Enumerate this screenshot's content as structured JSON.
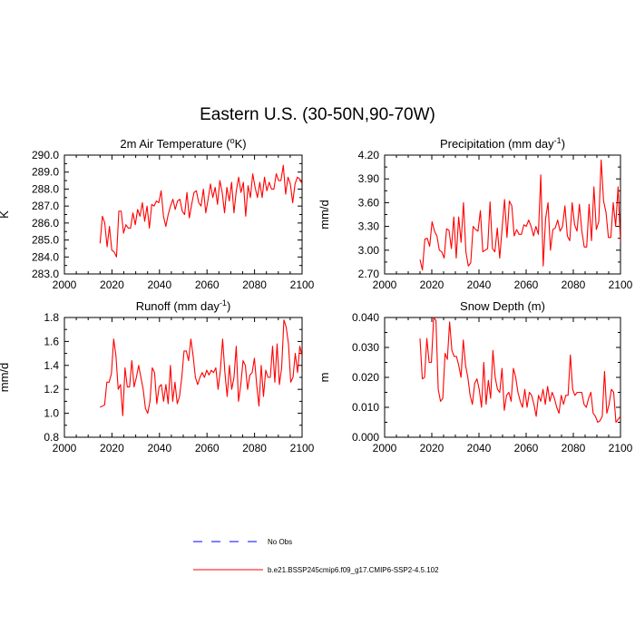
{
  "page_title": "Eastern U.S. (30-50N,90-70W)",
  "legend": {
    "obs_label": "No Obs",
    "model_label": "b.e21.BSSP245cmip6.f09_g17.CMIP6-SSP2-4.5.102",
    "obs_color": "#0000ff",
    "model_color": "#ff0000"
  },
  "chart_data": [
    {
      "type": "line",
      "id": "tas",
      "title": "2m Air Temperature (",
      "title_sup": "o",
      "title_end": "K)",
      "xlabel": "",
      "ylabel": "K",
      "xlim": [
        2000,
        2100
      ],
      "ylim": [
        283.0,
        290.0
      ],
      "xticks": [
        2000,
        2020,
        2040,
        2060,
        2080,
        2100
      ],
      "xtick_labels": [
        "2000",
        "2020",
        "2040",
        "2060",
        "2080",
        "2100"
      ],
      "yticks": [
        283.0,
        284.0,
        285.0,
        286.0,
        287.0,
        288.0,
        289.0,
        290.0
      ],
      "ytick_labels": [
        "283.0",
        "284.0",
        "285.0",
        "286.0",
        "287.0",
        "288.0",
        "289.0",
        "290.0"
      ],
      "series": [
        {
          "name": "b.e21.BSSP245cmip6.f09_g17.CMIP6-SSP2-4.5.102",
          "color": "#ff0000",
          "x_start": 2015,
          "values": [
            284.8,
            286.4,
            286.0,
            284.6,
            285.8,
            284.4,
            284.3,
            284.0,
            286.7,
            286.7,
            285.4,
            285.9,
            285.7,
            285.7,
            286.6,
            285.9,
            286.8,
            286.4,
            287.2,
            286.1,
            287.0,
            285.7,
            287.1,
            287.0,
            287.3,
            287.2,
            287.9,
            286.4,
            285.8,
            286.5,
            287.0,
            287.4,
            286.8,
            287.3,
            287.4,
            286.7,
            286.5,
            287.8,
            286.3,
            287.1,
            287.8,
            287.9,
            287.2,
            287.0,
            288.0,
            286.6,
            287.4,
            288.3,
            287.5,
            288.1,
            287.1,
            288.5,
            287.8,
            286.6,
            288.1,
            287.3,
            288.4,
            286.6,
            287.9,
            288.7,
            287.8,
            288.4,
            286.4,
            288.2,
            287.5,
            288.9,
            288.1,
            287.5,
            288.4,
            287.5,
            288.7,
            287.9,
            288.4,
            288.0,
            288.0,
            288.9,
            288.5,
            288.5,
            289.4,
            287.7,
            288.7,
            288.3,
            287.2,
            288.3,
            288.7,
            288.6,
            288.3
          ]
        }
      ]
    },
    {
      "type": "line",
      "id": "pr",
      "title": "Precipitation (mm day",
      "title_sup": "-1",
      "title_end": ")",
      "xlabel": "",
      "ylabel": "mm/d",
      "xlim": [
        2000,
        2100
      ],
      "ylim": [
        2.7,
        4.2
      ],
      "xticks": [
        2000,
        2020,
        2040,
        2060,
        2080,
        2100
      ],
      "xtick_labels": [
        "2000",
        "2020",
        "2040",
        "2060",
        "2080",
        "2100"
      ],
      "yticks": [
        2.7,
        3.0,
        3.3,
        3.6,
        3.9,
        4.2
      ],
      "ytick_labels": [
        "2.70",
        "3.00",
        "3.30",
        "3.60",
        "3.90",
        "4.20"
      ],
      "series": [
        {
          "name": "b.e21.BSSP245cmip6.f09_g17.CMIP6-SSP2-4.5.102",
          "color": "#ff0000",
          "x_start": 2015,
          "values": [
            2.88,
            2.75,
            3.14,
            3.15,
            3.05,
            3.36,
            3.24,
            3.18,
            3.0,
            2.98,
            2.9,
            3.27,
            3.25,
            3.02,
            3.42,
            2.9,
            3.42,
            3.1,
            3.6,
            2.98,
            2.8,
            2.84,
            3.3,
            3.26,
            3.24,
            3.5,
            2.98,
            3.0,
            3.02,
            3.61,
            3.02,
            2.98,
            3.28,
            2.9,
            3.28,
            3.64,
            3.16,
            3.62,
            3.56,
            3.18,
            3.26,
            3.2,
            3.2,
            3.32,
            3.3,
            3.38,
            3.3,
            3.18,
            3.3,
            3.2,
            3.95,
            2.8,
            3.4,
            3.6,
            3.0,
            3.26,
            3.28,
            3.38,
            3.24,
            3.3,
            3.56,
            3.18,
            3.12,
            3.6,
            3.32,
            3.24,
            3.58,
            3.24,
            3.04,
            3.04,
            3.58,
            3.12,
            3.8,
            3.26,
            3.36,
            4.14,
            3.62,
            3.48,
            3.16,
            3.16,
            3.6,
            3.3,
            3.8,
            3.1
          ]
        }
      ]
    },
    {
      "type": "line",
      "id": "runoff",
      "title": "Runoff (mm day",
      "title_sup": "-1",
      "title_end": ")",
      "xlabel": "",
      "ylabel": "mm/d",
      "xlim": [
        2000,
        2100
      ],
      "ylim": [
        0.8,
        1.8
      ],
      "xticks": [
        2000,
        2020,
        2040,
        2060,
        2080,
        2100
      ],
      "xtick_labels": [
        "2000",
        "2020",
        "2040",
        "2060",
        "2080",
        "2100"
      ],
      "yticks": [
        0.8,
        1.0,
        1.2,
        1.4,
        1.6,
        1.8
      ],
      "ytick_labels": [
        "0.8",
        "1.0",
        "1.2",
        "1.4",
        "1.6",
        "1.8"
      ],
      "series": [
        {
          "name": "b.e21.BSSP245cmip6.f09_g17.CMIP6-SSP2-4.5.102",
          "color": "#ff0000",
          "x_start": 2015,
          "values": [
            1.05,
            1.06,
            1.07,
            1.26,
            1.26,
            1.33,
            1.62,
            1.48,
            1.2,
            1.24,
            0.98,
            1.38,
            1.22,
            1.22,
            1.44,
            1.22,
            1.3,
            1.4,
            1.3,
            1.2,
            1.04,
            1.0,
            1.1,
            1.38,
            1.34,
            1.08,
            1.22,
            1.24,
            1.1,
            1.24,
            1.08,
            1.4,
            1.1,
            1.26,
            1.08,
            1.14,
            1.3,
            1.52,
            1.52,
            1.44,
            1.62,
            1.48,
            1.3,
            1.24,
            1.3,
            1.34,
            1.3,
            1.36,
            1.32,
            1.36,
            1.34,
            1.38,
            1.2,
            1.36,
            1.62,
            1.34,
            1.14,
            1.4,
            1.2,
            1.3,
            1.56,
            1.1,
            1.24,
            1.44,
            1.4,
            1.2,
            1.32,
            1.34,
            1.46,
            1.24,
            1.06,
            1.4,
            1.14,
            1.36,
            1.3,
            1.3,
            1.56,
            1.26,
            1.58,
            1.24,
            1.38,
            1.78,
            1.72,
            1.58,
            1.26,
            1.3,
            1.5,
            1.34,
            1.56,
            1.48
          ]
        }
      ]
    },
    {
      "type": "line",
      "id": "snd",
      "title": "Snow Depth (m)",
      "title_sup": "",
      "title_end": "",
      "xlabel": "",
      "ylabel": "m",
      "xlim": [
        2000,
        2100
      ],
      "ylim": [
        0.0,
        0.04
      ],
      "xticks": [
        2000,
        2020,
        2040,
        2060,
        2080,
        2100
      ],
      "xtick_labels": [
        "2000",
        "2020",
        "2040",
        "2060",
        "2080",
        "2100"
      ],
      "yticks": [
        0.0,
        0.01,
        0.02,
        0.03,
        0.04
      ],
      "ytick_labels": [
        "0.000",
        "0.010",
        "0.020",
        "0.030",
        "0.040"
      ],
      "series": [
        {
          "name": "b.e21.BSSP245cmip6.f09_g17.CMIP6-SSP2-4.5.102",
          "color": "#ff0000",
          "x_start": 2015,
          "values": [
            0.033,
            0.0195,
            0.02,
            0.033,
            0.025,
            0.025,
            0.04,
            0.039,
            0.016,
            0.012,
            0.013,
            0.028,
            0.026,
            0.0385,
            0.029,
            0.027,
            0.027,
            0.024,
            0.02,
            0.0325,
            0.024,
            0.02,
            0.014,
            0.011,
            0.018,
            0.0195,
            0.016,
            0.01,
            0.025,
            0.011,
            0.019,
            0.013,
            0.029,
            0.02,
            0.016,
            0.015,
            0.023,
            0.009,
            0.014,
            0.015,
            0.012,
            0.023,
            0.02,
            0.015,
            0.012,
            0.01,
            0.016,
            0.01,
            0.015,
            0.014,
            0.011,
            0.007,
            0.014,
            0.012,
            0.016,
            0.011,
            0.017,
            0.012,
            0.015,
            0.013,
            0.01,
            0.008,
            0.014,
            0.011,
            0.014,
            0.014,
            0.0275,
            0.016,
            0.014,
            0.015,
            0.015,
            0.015,
            0.011,
            0.01,
            0.013,
            0.015,
            0.008,
            0.007,
            0.005,
            0.0055,
            0.007,
            0.022,
            0.008,
            0.011,
            0.016,
            0.015,
            0.005,
            0.006,
            0.007
          ]
        }
      ]
    }
  ]
}
